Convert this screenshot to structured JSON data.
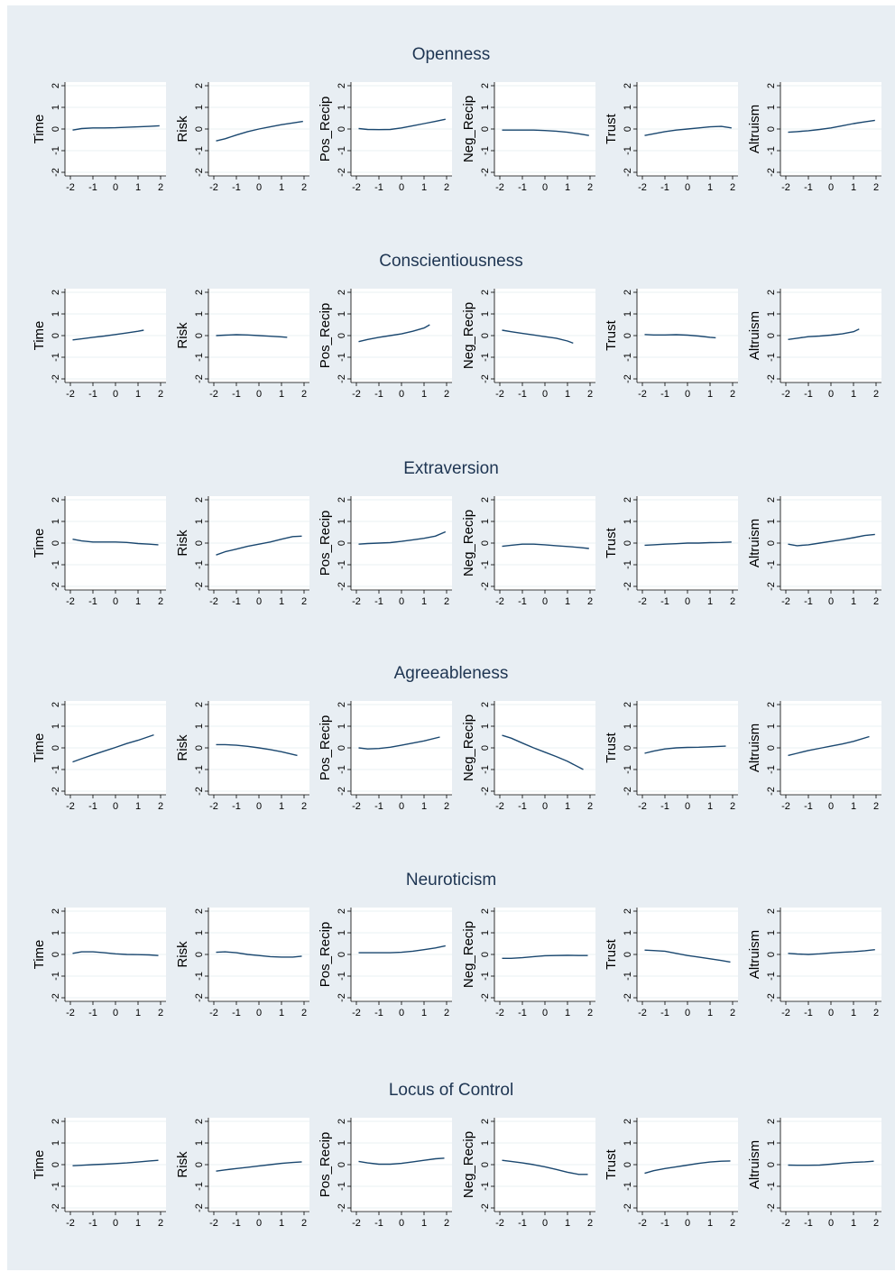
{
  "chart_data": [
    {
      "type": "line",
      "title": "Openness",
      "xlim": [
        -2,
        2
      ],
      "ylim": [
        -2,
        2
      ],
      "x_ticks": [
        "-2",
        "-1",
        "0",
        "1",
        "2"
      ],
      "y_ticks": [
        "-2",
        "-1",
        "0",
        "1",
        "2"
      ],
      "grid": true,
      "line_color": "#1a476f",
      "panels": [
        {
          "ylabel": "Time",
          "x": [
            -1.9,
            -1.5,
            -1,
            -0.5,
            0,
            0.5,
            1,
            1.5,
            1.95
          ],
          "y": [
            -0.05,
            0.02,
            0.05,
            0.05,
            0.06,
            0.08,
            0.1,
            0.12,
            0.15
          ]
        },
        {
          "ylabel": "Risk",
          "x": [
            -1.9,
            -1.5,
            -1,
            -0.5,
            0,
            0.5,
            1,
            1.5,
            1.95
          ],
          "y": [
            -0.55,
            -0.45,
            -0.28,
            -0.12,
            0.0,
            0.1,
            0.2,
            0.28,
            0.35
          ]
        },
        {
          "ylabel": "Pos_Recip",
          "x": [
            -1.9,
            -1.5,
            -1,
            -0.5,
            0,
            0.5,
            1,
            1.5,
            1.95
          ],
          "y": [
            0.02,
            -0.02,
            -0.03,
            -0.02,
            0.05,
            0.15,
            0.25,
            0.35,
            0.45
          ]
        },
        {
          "ylabel": "Neg_Recip",
          "x": [
            -1.9,
            -1.5,
            -1,
            -0.5,
            0,
            0.5,
            1,
            1.5,
            1.95
          ],
          "y": [
            -0.05,
            -0.05,
            -0.05,
            -0.05,
            -0.07,
            -0.1,
            -0.15,
            -0.22,
            -0.3
          ]
        },
        {
          "ylabel": "Trust",
          "x": [
            -1.9,
            -1.5,
            -1,
            -0.5,
            0,
            0.5,
            1,
            1.5,
            1.95
          ],
          "y": [
            -0.3,
            -0.22,
            -0.12,
            -0.05,
            0.0,
            0.05,
            0.1,
            0.12,
            0.05
          ]
        },
        {
          "ylabel": "Altruism",
          "x": [
            -1.9,
            -1.5,
            -1,
            -0.5,
            0,
            0.5,
            1,
            1.5,
            1.95
          ],
          "y": [
            -0.15,
            -0.12,
            -0.08,
            -0.02,
            0.05,
            0.15,
            0.25,
            0.33,
            0.4
          ]
        }
      ]
    },
    {
      "type": "line",
      "title": "Conscientiousness",
      "xlim": [
        -2,
        2
      ],
      "ylim": [
        -2,
        2
      ],
      "x_ticks": [
        "-2",
        "-1",
        "0",
        "1",
        "2"
      ],
      "y_ticks": [
        "-2",
        "-1",
        "0",
        "1",
        "2"
      ],
      "grid": true,
      "line_color": "#1a476f",
      "panels": [
        {
          "ylabel": "Time",
          "x": [
            -1.9,
            -1.5,
            -1,
            -0.5,
            0,
            0.5,
            1,
            1.25
          ],
          "y": [
            -0.2,
            -0.15,
            -0.08,
            -0.02,
            0.05,
            0.12,
            0.2,
            0.25
          ]
        },
        {
          "ylabel": "Risk",
          "x": [
            -1.9,
            -1.5,
            -1,
            -0.5,
            0,
            0.5,
            1,
            1.25
          ],
          "y": [
            0.0,
            0.02,
            0.04,
            0.03,
            0.0,
            -0.03,
            -0.06,
            -0.08
          ]
        },
        {
          "ylabel": "Pos_Recip",
          "x": [
            -1.9,
            -1.5,
            -1,
            -0.5,
            0,
            0.5,
            1,
            1.25
          ],
          "y": [
            -0.28,
            -0.18,
            -0.08,
            0.0,
            0.08,
            0.2,
            0.35,
            0.5
          ]
        },
        {
          "ylabel": "Neg_Recip",
          "x": [
            -1.9,
            -1.5,
            -1,
            -0.5,
            0,
            0.5,
            1,
            1.25
          ],
          "y": [
            0.25,
            0.18,
            0.1,
            0.03,
            -0.05,
            -0.12,
            -0.25,
            -0.35
          ]
        },
        {
          "ylabel": "Trust",
          "x": [
            -1.9,
            -1.5,
            -1,
            -0.5,
            0,
            0.5,
            1,
            1.25
          ],
          "y": [
            0.05,
            0.03,
            0.03,
            0.04,
            0.02,
            -0.02,
            -0.08,
            -0.1
          ]
        },
        {
          "ylabel": "Altruism",
          "x": [
            -1.9,
            -1.5,
            -1,
            -0.5,
            0,
            0.5,
            1,
            1.25
          ],
          "y": [
            -0.18,
            -0.12,
            -0.05,
            -0.02,
            0.02,
            0.08,
            0.18,
            0.3
          ]
        }
      ]
    },
    {
      "type": "line",
      "title": "Extraversion",
      "xlim": [
        -2,
        2
      ],
      "ylim": [
        -2,
        2
      ],
      "x_ticks": [
        "-2",
        "-1",
        "0",
        "1",
        "2"
      ],
      "y_ticks": [
        "-2",
        "-1",
        "0",
        "1",
        "2"
      ],
      "grid": true,
      "line_color": "#1a476f",
      "panels": [
        {
          "ylabel": "Time",
          "x": [
            -1.9,
            -1.5,
            -1,
            -0.5,
            0,
            0.5,
            1,
            1.5,
            1.9
          ],
          "y": [
            0.18,
            0.1,
            0.05,
            0.05,
            0.05,
            0.03,
            -0.02,
            -0.05,
            -0.08
          ]
        },
        {
          "ylabel": "Risk",
          "x": [
            -1.9,
            -1.5,
            -1,
            -0.5,
            0,
            0.5,
            1,
            1.5,
            1.9
          ],
          "y": [
            -0.55,
            -0.4,
            -0.28,
            -0.15,
            -0.05,
            0.05,
            0.18,
            0.3,
            0.32
          ]
        },
        {
          "ylabel": "Pos_Recip",
          "x": [
            -1.9,
            -1.5,
            -1,
            -0.5,
            0,
            0.5,
            1,
            1.5,
            1.95
          ],
          "y": [
            -0.05,
            -0.02,
            0.0,
            0.02,
            0.08,
            0.15,
            0.22,
            0.32,
            0.52
          ]
        },
        {
          "ylabel": "Neg_Recip",
          "x": [
            -1.9,
            -1.5,
            -1,
            -0.5,
            0,
            0.5,
            1,
            1.5,
            1.95
          ],
          "y": [
            -0.15,
            -0.1,
            -0.05,
            -0.05,
            -0.08,
            -0.12,
            -0.16,
            -0.2,
            -0.25
          ]
        },
        {
          "ylabel": "Trust",
          "x": [
            -1.9,
            -1.5,
            -1,
            -0.5,
            0,
            0.5,
            1,
            1.5,
            1.95
          ],
          "y": [
            -0.1,
            -0.08,
            -0.05,
            -0.03,
            0.0,
            0.0,
            0.02,
            0.03,
            0.05
          ]
        },
        {
          "ylabel": "Altruism",
          "x": [
            -1.9,
            -1.5,
            -1,
            -0.5,
            0,
            0.5,
            1,
            1.5,
            1.95
          ],
          "y": [
            -0.05,
            -0.12,
            -0.08,
            0.0,
            0.08,
            0.16,
            0.25,
            0.35,
            0.4
          ]
        }
      ]
    },
    {
      "type": "line",
      "title": "Agreeableness",
      "xlim": [
        -2,
        2
      ],
      "ylim": [
        -2,
        2
      ],
      "x_ticks": [
        "-2",
        "-1",
        "0",
        "1",
        "2"
      ],
      "y_ticks": [
        "-2",
        "-1",
        "0",
        "1",
        "2"
      ],
      "grid": true,
      "line_color": "#1a476f",
      "panels": [
        {
          "ylabel": "Time",
          "x": [
            -1.9,
            -1.5,
            -1,
            -0.5,
            0,
            0.5,
            1,
            1.7
          ],
          "y": [
            -0.65,
            -0.5,
            -0.32,
            -0.15,
            0.02,
            0.2,
            0.35,
            0.6
          ]
        },
        {
          "ylabel": "Risk",
          "x": [
            -1.9,
            -1.5,
            -1,
            -0.5,
            0,
            0.5,
            1,
            1.7
          ],
          "y": [
            0.15,
            0.15,
            0.12,
            0.07,
            0.0,
            -0.08,
            -0.18,
            -0.35
          ]
        },
        {
          "ylabel": "Pos_Recip",
          "x": [
            -1.9,
            -1.5,
            -1,
            -0.5,
            0,
            0.5,
            1,
            1.7
          ],
          "y": [
            0.0,
            -0.05,
            -0.03,
            0.03,
            0.12,
            0.22,
            0.32,
            0.5
          ]
        },
        {
          "ylabel": "Neg_Recip",
          "x": [
            -1.9,
            -1.5,
            -1,
            -0.5,
            0,
            0.5,
            1,
            1.7
          ],
          "y": [
            0.58,
            0.45,
            0.22,
            0.0,
            -0.2,
            -0.4,
            -0.62,
            -1.0
          ]
        },
        {
          "ylabel": "Trust",
          "x": [
            -1.9,
            -1.5,
            -1,
            -0.5,
            0,
            0.5,
            1,
            1.7
          ],
          "y": [
            -0.25,
            -0.15,
            -0.05,
            0.0,
            0.02,
            0.03,
            0.05,
            0.08
          ]
        },
        {
          "ylabel": "Altruism",
          "x": [
            -1.9,
            -1.5,
            -1,
            -0.5,
            0,
            0.5,
            1,
            1.7
          ],
          "y": [
            -0.35,
            -0.25,
            -0.12,
            -0.02,
            0.08,
            0.18,
            0.3,
            0.52
          ]
        }
      ]
    },
    {
      "type": "line",
      "title": "Neuroticism",
      "xlim": [
        -2,
        2
      ],
      "ylim": [
        -2,
        2
      ],
      "x_ticks": [
        "-2",
        "-1",
        "0",
        "1",
        "2"
      ],
      "y_ticks": [
        "-2",
        "-1",
        "0",
        "1",
        "2"
      ],
      "grid": true,
      "line_color": "#1a476f",
      "panels": [
        {
          "ylabel": "Time",
          "x": [
            -1.9,
            -1.5,
            -1,
            -0.5,
            0,
            0.5,
            1,
            1.5,
            1.9
          ],
          "y": [
            0.05,
            0.12,
            0.12,
            0.08,
            0.03,
            0.0,
            -0.01,
            -0.02,
            -0.05
          ]
        },
        {
          "ylabel": "Risk",
          "x": [
            -1.9,
            -1.5,
            -1,
            -0.5,
            0,
            0.5,
            1,
            1.5,
            1.9
          ],
          "y": [
            0.1,
            0.12,
            0.08,
            0.0,
            -0.05,
            -0.1,
            -0.12,
            -0.12,
            -0.08
          ]
        },
        {
          "ylabel": "Pos_Recip",
          "x": [
            -1.9,
            -1.5,
            -1,
            -0.5,
            0,
            0.5,
            1,
            1.5,
            1.95
          ],
          "y": [
            0.08,
            0.08,
            0.08,
            0.08,
            0.1,
            0.15,
            0.22,
            0.3,
            0.4
          ]
        },
        {
          "ylabel": "Neg_Recip",
          "x": [
            -1.9,
            -1.5,
            -1,
            -0.5,
            0,
            0.5,
            1,
            1.5,
            1.9
          ],
          "y": [
            -0.18,
            -0.18,
            -0.15,
            -0.1,
            -0.06,
            -0.05,
            -0.04,
            -0.05,
            -0.05
          ]
        },
        {
          "ylabel": "Trust",
          "x": [
            -1.9,
            -1.5,
            -1,
            -0.5,
            0,
            0.5,
            1,
            1.5,
            1.9
          ],
          "y": [
            0.2,
            0.18,
            0.15,
            0.05,
            -0.05,
            -0.12,
            -0.2,
            -0.28,
            -0.35
          ]
        },
        {
          "ylabel": "Altruism",
          "x": [
            -1.9,
            -1.5,
            -1,
            -0.5,
            0,
            0.5,
            1,
            1.5,
            1.95
          ],
          "y": [
            0.05,
            0.02,
            0.0,
            0.03,
            0.07,
            0.1,
            0.13,
            0.17,
            0.22
          ]
        }
      ]
    },
    {
      "type": "line",
      "title": "Locus of Control",
      "xlim": [
        -2,
        2
      ],
      "ylim": [
        -2,
        2
      ],
      "x_ticks": [
        "-2",
        "-1",
        "0",
        "1",
        "2"
      ],
      "y_ticks": [
        "-2",
        "-1",
        "0",
        "1",
        "2"
      ],
      "grid": true,
      "line_color": "#1a476f",
      "panels": [
        {
          "ylabel": "Time",
          "x": [
            -1.9,
            -1.5,
            -1,
            -0.5,
            0,
            0.5,
            1,
            1.5,
            1.9
          ],
          "y": [
            -0.05,
            -0.03,
            0.0,
            0.02,
            0.05,
            0.08,
            0.12,
            0.17,
            0.2
          ]
        },
        {
          "ylabel": "Risk",
          "x": [
            -1.9,
            -1.5,
            -1,
            -0.5,
            0,
            0.5,
            1,
            1.5,
            1.9
          ],
          "y": [
            -0.3,
            -0.24,
            -0.18,
            -0.12,
            -0.06,
            0.0,
            0.06,
            0.1,
            0.13
          ]
        },
        {
          "ylabel": "Pos_Recip",
          "x": [
            -1.9,
            -1.5,
            -1,
            -0.5,
            0,
            0.5,
            1,
            1.5,
            1.9
          ],
          "y": [
            0.15,
            0.08,
            0.02,
            0.02,
            0.06,
            0.13,
            0.2,
            0.27,
            0.3
          ]
        },
        {
          "ylabel": "Neg_Recip",
          "x": [
            -1.9,
            -1.5,
            -1,
            -0.5,
            0,
            0.5,
            1,
            1.5,
            1.9
          ],
          "y": [
            0.2,
            0.15,
            0.08,
            0.0,
            -0.1,
            -0.22,
            -0.35,
            -0.45,
            -0.45
          ]
        },
        {
          "ylabel": "Trust",
          "x": [
            -1.9,
            -1.5,
            -1,
            -0.5,
            0,
            0.5,
            1,
            1.5,
            1.9
          ],
          "y": [
            -0.4,
            -0.28,
            -0.18,
            -0.1,
            -0.02,
            0.06,
            0.12,
            0.16,
            0.17
          ]
        },
        {
          "ylabel": "Altruism",
          "x": [
            -1.9,
            -1.5,
            -1,
            -0.5,
            0,
            0.5,
            1,
            1.5,
            1.9
          ],
          "y": [
            -0.02,
            -0.03,
            -0.03,
            -0.02,
            0.02,
            0.07,
            0.11,
            0.13,
            0.16
          ]
        }
      ]
    }
  ]
}
